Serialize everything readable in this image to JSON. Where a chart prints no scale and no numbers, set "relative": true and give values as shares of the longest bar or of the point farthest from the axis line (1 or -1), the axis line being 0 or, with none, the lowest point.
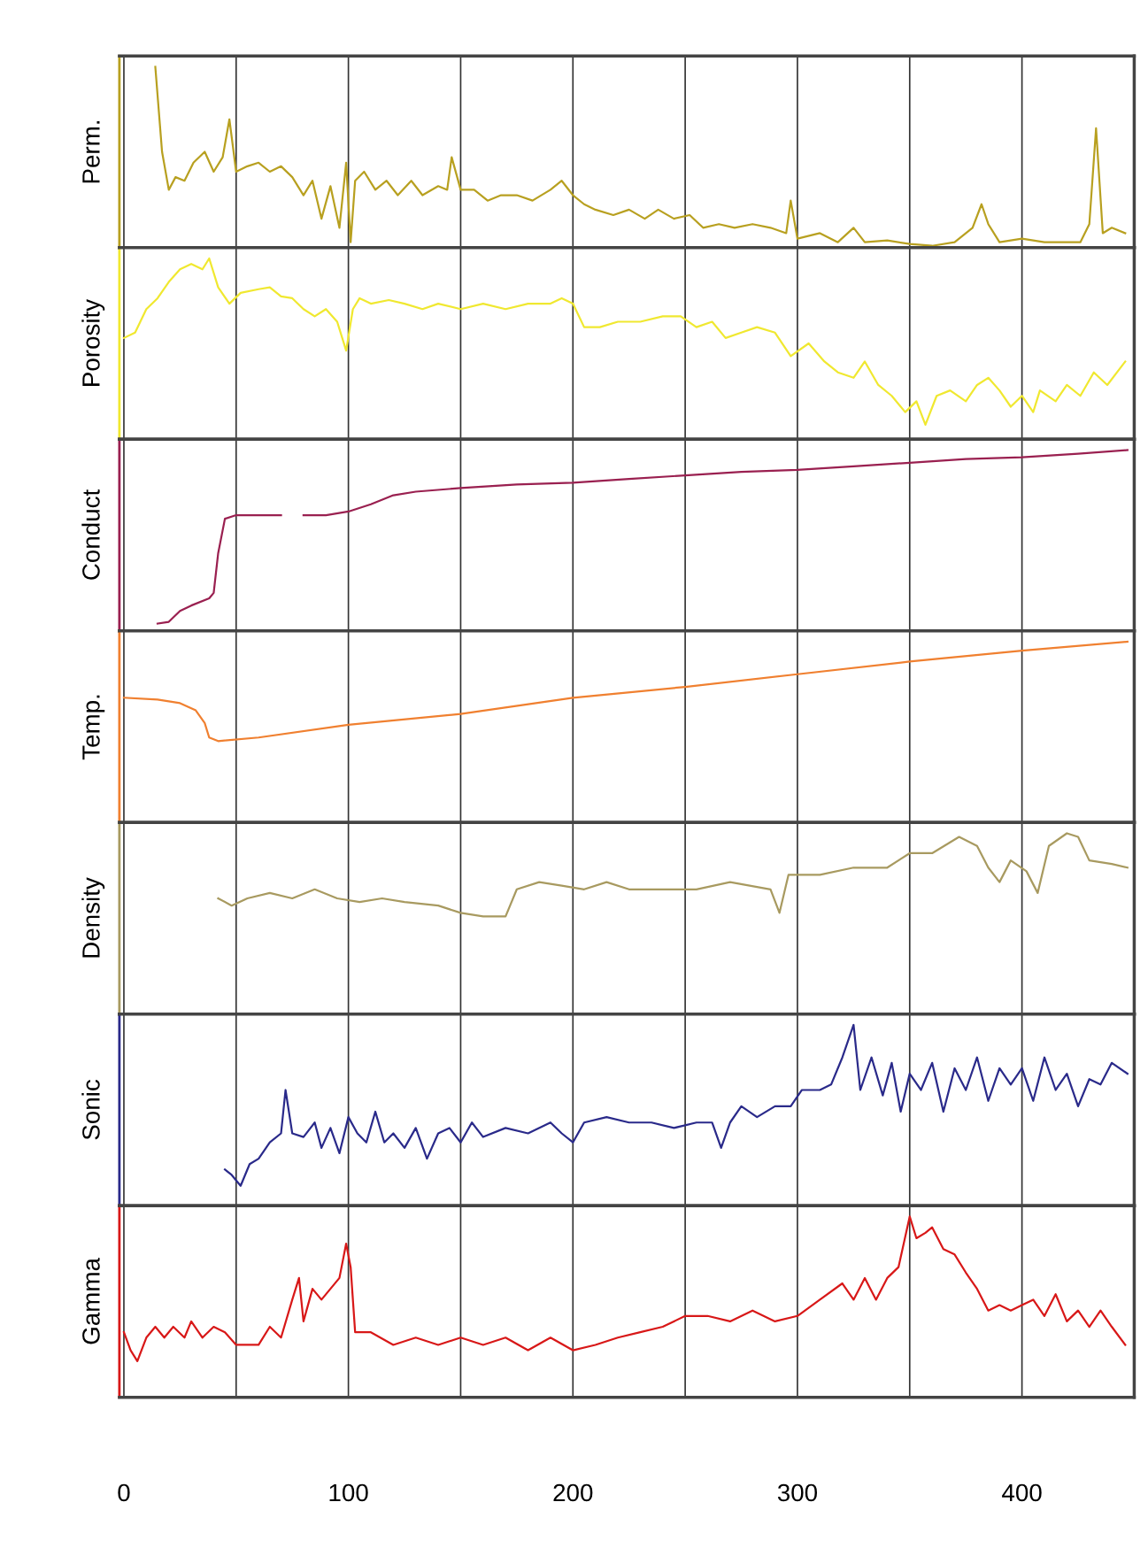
{
  "chart_data": [
    {
      "type": "line",
      "ylabel": "Perm.",
      "relative": true,
      "xlim": [
        -2,
        450
      ],
      "xticks": [
        0,
        {
          "value": 50,
          "label": null
        },
        100,
        {
          "value": 150,
          "label": null
        },
        200,
        {
          "value": 250,
          "label": null
        },
        300,
        {
          "value": 350,
          "label": null
        },
        400
      ],
      "grid": "x",
      "tick_labels": false,
      "series": [
        {
          "color": "#b8a020",
          "x": [
            14,
            17,
            20,
            23,
            27,
            31,
            36,
            40,
            44,
            47,
            50,
            55,
            60,
            65,
            70,
            75,
            80,
            84,
            88,
            92,
            96,
            99,
            101,
            103,
            107,
            112,
            117,
            122,
            128,
            133,
            140,
            144,
            146,
            150,
            156,
            162,
            168,
            175,
            182,
            190,
            195,
            200,
            205,
            210,
            218,
            225,
            232,
            238,
            245,
            252,
            258,
            265,
            272,
            280,
            288,
            295,
            297,
            300,
            310,
            318,
            325,
            330,
            340,
            350,
            360,
            370,
            378,
            382,
            385,
            390,
            400,
            410,
            420,
            426,
            430,
            433,
            436,
            440,
            446
          ],
          "values": [
            1.0,
            0.53,
            0.32,
            0.39,
            0.37,
            0.47,
            0.53,
            0.42,
            0.5,
            0.71,
            0.42,
            0.45,
            0.47,
            0.42,
            0.45,
            0.39,
            0.29,
            0.37,
            0.16,
            0.34,
            0.11,
            0.47,
            0.03,
            0.37,
            0.42,
            0.32,
            0.37,
            0.29,
            0.37,
            0.29,
            0.34,
            0.32,
            0.5,
            0.32,
            0.32,
            0.26,
            0.29,
            0.29,
            0.26,
            0.32,
            0.37,
            0.29,
            0.24,
            0.21,
            0.18,
            0.21,
            0.16,
            0.21,
            0.16,
            0.18,
            0.11,
            0.13,
            0.11,
            0.13,
            0.11,
            0.08,
            0.26,
            0.05,
            0.08,
            0.03,
            0.11,
            0.03,
            0.04,
            0.02,
            0.01,
            0.03,
            0.11,
            0.24,
            0.13,
            0.03,
            0.05,
            0.03,
            0.03,
            0.03,
            0.13,
            0.66,
            0.08,
            0.11,
            0.08
          ]
        }
      ]
    },
    {
      "type": "line",
      "ylabel": "Porosity",
      "relative": true,
      "xlim": [
        -2,
        450
      ],
      "xticks": [
        0,
        {
          "value": 50,
          "label": null
        },
        100,
        {
          "value": 150,
          "label": null
        },
        200,
        {
          "value": 250,
          "label": null
        },
        300,
        {
          "value": 350,
          "label": null
        },
        400
      ],
      "grid": "x",
      "tick_labels": false,
      "series": [
        {
          "color": "#f0e830",
          "x": [
            0,
            5,
            10,
            15,
            20,
            25,
            30,
            35,
            38,
            42,
            47,
            52,
            60,
            65,
            70,
            75,
            80,
            85,
            90,
            95,
            99,
            102,
            105,
            110,
            118,
            125,
            133,
            140,
            150,
            160,
            170,
            180,
            190,
            195,
            200,
            205,
            212,
            220,
            230,
            240,
            248,
            255,
            262,
            268,
            275,
            282,
            290,
            297,
            305,
            312,
            318,
            325,
            330,
            336,
            342,
            348,
            353,
            357,
            362,
            368,
            375,
            380,
            385,
            390,
            395,
            400,
            405,
            408,
            415,
            420,
            426,
            432,
            438,
            446
          ],
          "values": [
            0.56,
            0.59,
            0.72,
            0.78,
            0.87,
            0.94,
            0.97,
            0.94,
            1.0,
            0.84,
            0.75,
            0.81,
            0.83,
            0.84,
            0.79,
            0.78,
            0.72,
            0.68,
            0.72,
            0.65,
            0.49,
            0.72,
            0.78,
            0.75,
            0.77,
            0.75,
            0.72,
            0.75,
            0.72,
            0.75,
            0.72,
            0.75,
            0.75,
            0.78,
            0.75,
            0.62,
            0.62,
            0.65,
            0.65,
            0.68,
            0.68,
            0.62,
            0.65,
            0.56,
            0.59,
            0.62,
            0.59,
            0.46,
            0.53,
            0.43,
            0.37,
            0.34,
            0.43,
            0.3,
            0.24,
            0.15,
            0.21,
            0.08,
            0.24,
            0.27,
            0.21,
            0.3,
            0.34,
            0.27,
            0.18,
            0.24,
            0.15,
            0.27,
            0.21,
            0.3,
            0.24,
            0.37,
            0.3,
            0.43
          ]
        }
      ]
    },
    {
      "type": "line",
      "ylabel": "Conduct",
      "relative": true,
      "xlim": [
        -2,
        450
      ],
      "xticks": [
        0,
        {
          "value": 50,
          "label": null
        },
        100,
        {
          "value": 150,
          "label": null
        },
        200,
        {
          "value": 250,
          "label": null
        },
        300,
        {
          "value": 350,
          "label": null
        },
        400
      ],
      "grid": "x",
      "tick_labels": false,
      "series": [
        {
          "color": "#9a2050",
          "x": [
            15,
            20,
            25,
            30,
            38,
            40,
            42,
            45,
            50,
            60,
            70,
            75,
            80,
            90,
            100,
            110,
            120,
            130,
            150,
            175,
            200,
            225,
            250,
            275,
            300,
            325,
            350,
            375,
            400,
            425,
            447
          ],
          "values": [
            0.04,
            0.05,
            0.11,
            0.14,
            0.18,
            0.21,
            0.43,
            0.62,
            0.64,
            0.64,
            0.64,
            null,
            0.64,
            0.64,
            0.66,
            0.7,
            0.75,
            0.77,
            0.79,
            0.81,
            0.82,
            0.84,
            0.86,
            0.88,
            0.89,
            0.91,
            0.93,
            0.95,
            0.96,
            0.98,
            1.0
          ]
        }
      ]
    },
    {
      "type": "line",
      "ylabel": "Temp.",
      "relative": true,
      "xlim": [
        -2,
        450
      ],
      "xticks": [
        0,
        {
          "value": 50,
          "label": null
        },
        100,
        {
          "value": 150,
          "label": null
        },
        200,
        {
          "value": 250,
          "label": null
        },
        300,
        {
          "value": 350,
          "label": null
        },
        400
      ],
      "grid": "x",
      "tick_labels": false,
      "series": [
        {
          "color": "#f08030",
          "x": [
            0,
            15,
            25,
            32,
            36,
            38,
            42,
            60,
            100,
            150,
            200,
            250,
            300,
            350,
            400,
            447
          ],
          "values": [
            0.69,
            0.68,
            0.66,
            0.62,
            0.55,
            0.47,
            0.45,
            0.47,
            0.54,
            0.6,
            0.69,
            0.75,
            0.82,
            0.89,
            0.95,
            1.0
          ]
        }
      ]
    },
    {
      "type": "line",
      "ylabel": "Density",
      "relative": true,
      "xlim": [
        -2,
        450
      ],
      "xticks": [
        0,
        {
          "value": 50,
          "label": null
        },
        100,
        {
          "value": 150,
          "label": null
        },
        200,
        {
          "value": 250,
          "label": null
        },
        300,
        {
          "value": 350,
          "label": null
        },
        400
      ],
      "grid": "x",
      "tick_labels": false,
      "series": [
        {
          "color": "#a89a60",
          "x": [
            42,
            48,
            55,
            65,
            75,
            85,
            95,
            105,
            115,
            125,
            140,
            150,
            160,
            170,
            175,
            185,
            195,
            205,
            215,
            225,
            240,
            255,
            270,
            288,
            292,
            296,
            310,
            325,
            340,
            350,
            360,
            372,
            380,
            385,
            390,
            395,
            402,
            407,
            412,
            420,
            425,
            430,
            440,
            447
          ],
          "values": [
            0.64,
            0.6,
            0.64,
            0.67,
            0.64,
            0.69,
            0.64,
            0.62,
            0.64,
            0.62,
            0.6,
            0.56,
            0.54,
            0.54,
            0.69,
            0.73,
            0.71,
            0.69,
            0.73,
            0.69,
            0.69,
            0.69,
            0.73,
            0.69,
            0.56,
            0.77,
            0.77,
            0.81,
            0.81,
            0.89,
            0.89,
            0.98,
            0.93,
            0.81,
            0.73,
            0.85,
            0.79,
            0.67,
            0.93,
            1.0,
            0.98,
            0.85,
            0.83,
            0.81
          ]
        }
      ]
    },
    {
      "type": "line",
      "ylabel": "Sonic",
      "relative": true,
      "xlim": [
        -2,
        450
      ],
      "xticks": [
        0,
        {
          "value": 50,
          "label": null
        },
        100,
        {
          "value": 150,
          "label": null
        },
        200,
        {
          "value": 250,
          "label": null
        },
        300,
        {
          "value": 350,
          "label": null
        },
        400
      ],
      "grid": "x",
      "tick_labels": false,
      "series": [
        {
          "color": "#2a2a8a",
          "x": [
            45,
            48,
            52,
            56,
            60,
            65,
            70,
            72,
            75,
            80,
            85,
            88,
            92,
            96,
            100,
            104,
            108,
            112,
            116,
            120,
            125,
            130,
            135,
            140,
            145,
            150,
            155,
            160,
            170,
            180,
            190,
            195,
            200,
            205,
            215,
            225,
            235,
            245,
            255,
            262,
            266,
            270,
            275,
            282,
            290,
            297,
            302,
            310,
            315,
            320,
            325,
            328,
            333,
            338,
            342,
            346,
            350,
            355,
            360,
            365,
            370,
            375,
            380,
            385,
            390,
            395,
            400,
            405,
            410,
            415,
            420,
            425,
            430,
            435,
            440,
            447
          ],
          "values": [
            0.2,
            0.17,
            0.11,
            0.23,
            0.26,
            0.35,
            0.4,
            0.64,
            0.4,
            0.38,
            0.46,
            0.32,
            0.43,
            0.29,
            0.49,
            0.4,
            0.35,
            0.52,
            0.35,
            0.4,
            0.32,
            0.43,
            0.26,
            0.4,
            0.43,
            0.35,
            0.46,
            0.38,
            0.43,
            0.4,
            0.46,
            0.4,
            0.35,
            0.46,
            0.49,
            0.46,
            0.46,
            0.43,
            0.46,
            0.46,
            0.32,
            0.46,
            0.55,
            0.49,
            0.55,
            0.55,
            0.64,
            0.64,
            0.67,
            0.82,
            1.0,
            0.64,
            0.82,
            0.61,
            0.79,
            0.52,
            0.73,
            0.64,
            0.79,
            0.52,
            0.76,
            0.64,
            0.82,
            0.58,
            0.76,
            0.67,
            0.76,
            0.58,
            0.82,
            0.64,
            0.73,
            0.55,
            0.7,
            0.67,
            0.79,
            0.73
          ]
        }
      ]
    },
    {
      "type": "line",
      "ylabel": "Gamma",
      "relative": true,
      "xlim": [
        -2,
        450
      ],
      "xticks": [
        0,
        {
          "value": 50,
          "label": null
        },
        100,
        {
          "value": 150,
          "label": null
        },
        200,
        {
          "value": 250,
          "label": null
        },
        300,
        {
          "value": 350,
          "label": null
        },
        400
      ],
      "grid": "x",
      "tick_labels": "x",
      "series": [
        {
          "color": "#d81818",
          "x": [
            0,
            3,
            6,
            10,
            14,
            18,
            22,
            27,
            30,
            35,
            40,
            45,
            50,
            60,
            65,
            70,
            75,
            78,
            80,
            84,
            88,
            92,
            96,
            99,
            101,
            103,
            110,
            120,
            130,
            140,
            150,
            160,
            170,
            180,
            190,
            200,
            210,
            220,
            230,
            240,
            250,
            260,
            270,
            280,
            290,
            300,
            310,
            320,
            325,
            330,
            335,
            340,
            345,
            350,
            353,
            357,
            360,
            365,
            370,
            375,
            380,
            385,
            390,
            395,
            400,
            405,
            410,
            415,
            420,
            425,
            430,
            435,
            440,
            446
          ],
          "values": [
            0.36,
            0.26,
            0.2,
            0.33,
            0.39,
            0.33,
            0.39,
            0.33,
            0.42,
            0.33,
            0.39,
            0.36,
            0.29,
            0.29,
            0.39,
            0.33,
            0.54,
            0.66,
            0.42,
            0.6,
            0.54,
            0.6,
            0.66,
            0.85,
            0.72,
            0.36,
            0.36,
            0.29,
            0.33,
            0.29,
            0.33,
            0.29,
            0.33,
            0.26,
            0.33,
            0.26,
            0.29,
            0.33,
            0.36,
            0.39,
            0.45,
            0.45,
            0.42,
            0.48,
            0.42,
            0.45,
            0.54,
            0.63,
            0.54,
            0.66,
            0.54,
            0.66,
            0.72,
            1.0,
            0.88,
            0.91,
            0.94,
            0.82,
            0.79,
            0.69,
            0.6,
            0.48,
            0.51,
            0.48,
            0.51,
            0.54,
            0.45,
            0.57,
            0.42,
            0.48,
            0.39,
            0.48,
            0.39,
            0.29
          ]
        }
      ]
    }
  ]
}
